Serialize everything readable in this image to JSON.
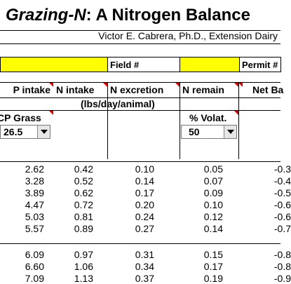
{
  "header": {
    "title_italic": "Grazing-N",
    "title_rest": ": A Nitrogen Balance",
    "author": "Victor E. Cabrera, Ph.D., Extension Dairy"
  },
  "labels": {
    "field": "Field #",
    "permit": "Permit #"
  },
  "columns": {
    "cp_intake": "P intake",
    "n_intake": "N intake",
    "n_excretion": "N excretion",
    "n_remain": "N remain",
    "net_balance": "Net Ba"
  },
  "units": "(lbs/day/animal)",
  "controls": {
    "cp_grass_label": "CP Grass",
    "cp_grass_value": "26.5",
    "volat_label": "% Volat.",
    "volat_value": "50"
  },
  "rows": [
    {
      "cp": "2.62",
      "ni": "0.42",
      "ne": "0.10",
      "nr": "0.05",
      "nb": "-0.3"
    },
    {
      "cp": "3.28",
      "ni": "0.52",
      "ne": "0.14",
      "nr": "0.07",
      "nb": "-0.4"
    },
    {
      "cp": "3.89",
      "ni": "0.62",
      "ne": "0.17",
      "nr": "0.09",
      "nb": "-0.5"
    },
    {
      "cp": "4.47",
      "ni": "0.72",
      "ne": "0.20",
      "nr": "0.10",
      "nb": "-0.6"
    },
    {
      "cp": "5.03",
      "ni": "0.81",
      "ne": "0.24",
      "nr": "0.12",
      "nb": "-0.6"
    },
    {
      "cp": "5.57",
      "ni": "0.89",
      "ne": "0.27",
      "nr": "0.14",
      "nb": "-0.7"
    },
    {
      "cp": "6.09",
      "ni": "0.97",
      "ne": "0.31",
      "nr": "0.15",
      "nb": "-0.8"
    },
    {
      "cp": "6.60",
      "ni": "1.06",
      "ne": "0.34",
      "nr": "0.17",
      "nb": "-0.8"
    },
    {
      "cp": "7.09",
      "ni": "1.13",
      "ne": "0.37",
      "nr": "0.19",
      "nb": "-0.9"
    }
  ]
}
